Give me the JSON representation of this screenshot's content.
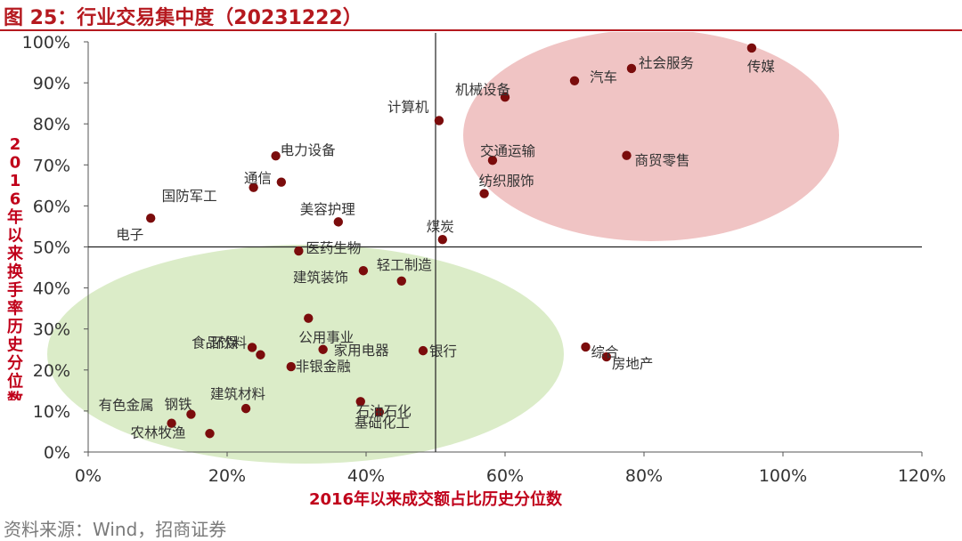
{
  "figure": {
    "title": "图 25：行业交易集中度（20231222）",
    "source": "资料来源：Wind，招商证券"
  },
  "colors": {
    "point": "#7b0c0c",
    "upper_ellipse": "#e8a4a4",
    "lower_ellipse": "#cfe6b6",
    "title": "#b5191f",
    "axis_label": "#c0001a"
  },
  "chart_data": {
    "type": "scatter",
    "xlabel": "2016年以来成交额占比历史分位数",
    "ylabel": "2016年以来换手率历史分位数",
    "xlim": [
      0,
      1.2
    ],
    "ylim": [
      0,
      1.0
    ],
    "x_ticks": [
      "0%",
      "20%",
      "40%",
      "60%",
      "80%",
      "100%",
      "120%"
    ],
    "y_ticks": [
      "0%",
      "10%",
      "20%",
      "30%",
      "40%",
      "50%",
      "60%",
      "70%",
      "80%",
      "90%",
      "100%"
    ],
    "crosshair": {
      "x": 0.5,
      "y": 0.5
    },
    "grid": false,
    "points": [
      {
        "label": "传媒",
        "x": 0.955,
        "y": 0.985
      },
      {
        "label": "社会服务",
        "x": 0.782,
        "y": 0.935
      },
      {
        "label": "汽车",
        "x": 0.7,
        "y": 0.905
      },
      {
        "label": "机械设备",
        "x": 0.6,
        "y": 0.865
      },
      {
        "label": "计算机",
        "x": 0.505,
        "y": 0.808
      },
      {
        "label": "交通运输",
        "x": 0.582,
        "y": 0.711
      },
      {
        "label": "商贸零售",
        "x": 0.775,
        "y": 0.723
      },
      {
        "label": "纺织服饰",
        "x": 0.57,
        "y": 0.63
      },
      {
        "label": "电力设备",
        "x": 0.27,
        "y": 0.722
      },
      {
        "label": "通信",
        "x": 0.278,
        "y": 0.658
      },
      {
        "label": "国防军工",
        "x": 0.238,
        "y": 0.645
      },
      {
        "label": "电子",
        "x": 0.09,
        "y": 0.57
      },
      {
        "label": "美容护理",
        "x": 0.36,
        "y": 0.561
      },
      {
        "label": "煤炭",
        "x": 0.51,
        "y": 0.518
      },
      {
        "label": "医药生物",
        "x": 0.303,
        "y": 0.49
      },
      {
        "label": "建筑装饰",
        "x": 0.396,
        "y": 0.442
      },
      {
        "label": "轻工制造",
        "x": 0.451,
        "y": 0.417
      },
      {
        "label": "公用事业",
        "x": 0.317,
        "y": 0.326
      },
      {
        "label": "食品饮料",
        "x": 0.236,
        "y": 0.255
      },
      {
        "label": "环保",
        "x": 0.248,
        "y": 0.237
      },
      {
        "label": "家用电器",
        "x": 0.338,
        "y": 0.25
      },
      {
        "label": "银行",
        "x": 0.482,
        "y": 0.247
      },
      {
        "label": "非银金融",
        "x": 0.292,
        "y": 0.208
      },
      {
        "label": "综合",
        "x": 0.716,
        "y": 0.256
      },
      {
        "label": "房地产",
        "x": 0.746,
        "y": 0.232
      },
      {
        "label": "建筑材料",
        "x": 0.227,
        "y": 0.106
      },
      {
        "label": "有色金属",
        "x": 0.12,
        "y": 0.07
      },
      {
        "label": "钢铁",
        "x": 0.148,
        "y": 0.092
      },
      {
        "label": "农林牧渔",
        "x": 0.175,
        "y": 0.045
      },
      {
        "label": "石油石化",
        "x": 0.392,
        "y": 0.123
      },
      {
        "label": "基础化工",
        "x": 0.419,
        "y": 0.097
      }
    ]
  }
}
